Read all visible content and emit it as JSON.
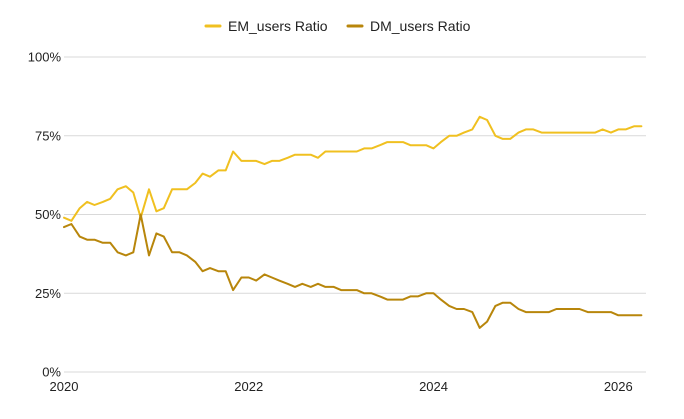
{
  "chart_data": {
    "type": "line",
    "title": "",
    "xlabel": "",
    "ylabel": "",
    "x_unit": "year",
    "xlim": [
      2020.0,
      2026.3
    ],
    "ylim": [
      0,
      100
    ],
    "x_ticks": [
      2020,
      2022,
      2024,
      2026
    ],
    "x_tick_labels": [
      "2020",
      "2022",
      "2024",
      "2026"
    ],
    "y_ticks": [
      0,
      25,
      50,
      75,
      100
    ],
    "y_tick_labels": [
      "0%",
      "25%",
      "50%",
      "75%",
      "100%"
    ],
    "grid": "horizontal",
    "legend_position": "top",
    "series": [
      {
        "name": "EM_users Ratio",
        "color": "#f0c020",
        "x": [
          2020.0,
          2020.08,
          2020.17,
          2020.25,
          2020.33,
          2020.42,
          2020.5,
          2020.58,
          2020.67,
          2020.75,
          2020.83,
          2020.92,
          2021.0,
          2021.08,
          2021.17,
          2021.25,
          2021.33,
          2021.42,
          2021.5,
          2021.58,
          2021.67,
          2021.75,
          2021.83,
          2021.92,
          2022.0,
          2022.08,
          2022.17,
          2022.25,
          2022.33,
          2022.42,
          2022.5,
          2022.58,
          2022.67,
          2022.75,
          2022.83,
          2022.92,
          2023.0,
          2023.08,
          2023.17,
          2023.25,
          2023.33,
          2023.42,
          2023.5,
          2023.58,
          2023.67,
          2023.75,
          2023.83,
          2023.92,
          2024.0,
          2024.08,
          2024.17,
          2024.25,
          2024.33,
          2024.42,
          2024.5,
          2024.58,
          2024.67,
          2024.75,
          2024.83,
          2024.92,
          2025.0,
          2025.08,
          2025.17,
          2025.25,
          2025.33,
          2025.42,
          2025.5,
          2025.58,
          2025.67,
          2025.75,
          2025.83,
          2025.92,
          2026.0,
          2026.08,
          2026.17,
          2026.25
        ],
        "values": [
          49,
          48,
          52,
          54,
          53,
          54,
          55,
          58,
          59,
          57,
          49,
          58,
          51,
          52,
          58,
          58,
          58,
          60,
          63,
          62,
          64,
          64,
          70,
          67,
          67,
          67,
          66,
          67,
          67,
          68,
          69,
          69,
          69,
          68,
          70,
          70,
          70,
          70,
          70,
          71,
          71,
          72,
          73,
          73,
          73,
          72,
          72,
          72,
          71,
          73,
          75,
          75,
          76,
          77,
          81,
          80,
          75,
          74,
          74,
          76,
          77,
          77,
          76,
          76,
          76,
          76,
          76,
          76,
          76,
          76,
          77,
          76,
          77,
          77,
          78,
          78
        ]
      },
      {
        "name": "DM_users Ratio",
        "color": "#b8860b",
        "x": [
          2020.0,
          2020.08,
          2020.17,
          2020.25,
          2020.33,
          2020.42,
          2020.5,
          2020.58,
          2020.67,
          2020.75,
          2020.83,
          2020.92,
          2021.0,
          2021.08,
          2021.17,
          2021.25,
          2021.33,
          2021.42,
          2021.5,
          2021.58,
          2021.67,
          2021.75,
          2021.83,
          2021.92,
          2022.0,
          2022.08,
          2022.17,
          2022.25,
          2022.33,
          2022.42,
          2022.5,
          2022.58,
          2022.67,
          2022.75,
          2022.83,
          2022.92,
          2023.0,
          2023.08,
          2023.17,
          2023.25,
          2023.33,
          2023.42,
          2023.5,
          2023.58,
          2023.67,
          2023.75,
          2023.83,
          2023.92,
          2024.0,
          2024.08,
          2024.17,
          2024.25,
          2024.33,
          2024.42,
          2024.5,
          2024.58,
          2024.67,
          2024.75,
          2024.83,
          2024.92,
          2025.0,
          2025.08,
          2025.17,
          2025.25,
          2025.33,
          2025.42,
          2025.5,
          2025.58,
          2025.67,
          2025.75,
          2025.83,
          2025.92,
          2026.0,
          2026.08,
          2026.17,
          2026.25
        ],
        "values": [
          46,
          47,
          43,
          42,
          42,
          41,
          41,
          38,
          37,
          38,
          50,
          37,
          44,
          43,
          38,
          38,
          37,
          35,
          32,
          33,
          32,
          32,
          26,
          30,
          30,
          29,
          31,
          30,
          29,
          28,
          27,
          28,
          27,
          28,
          27,
          27,
          26,
          26,
          26,
          25,
          25,
          24,
          23,
          23,
          23,
          24,
          24,
          25,
          25,
          23,
          21,
          20,
          20,
          19,
          14,
          16,
          21,
          22,
          22,
          20,
          19,
          19,
          19,
          19,
          20,
          20,
          20,
          20,
          19,
          19,
          19,
          19,
          18,
          18,
          18,
          18
        ]
      }
    ]
  }
}
